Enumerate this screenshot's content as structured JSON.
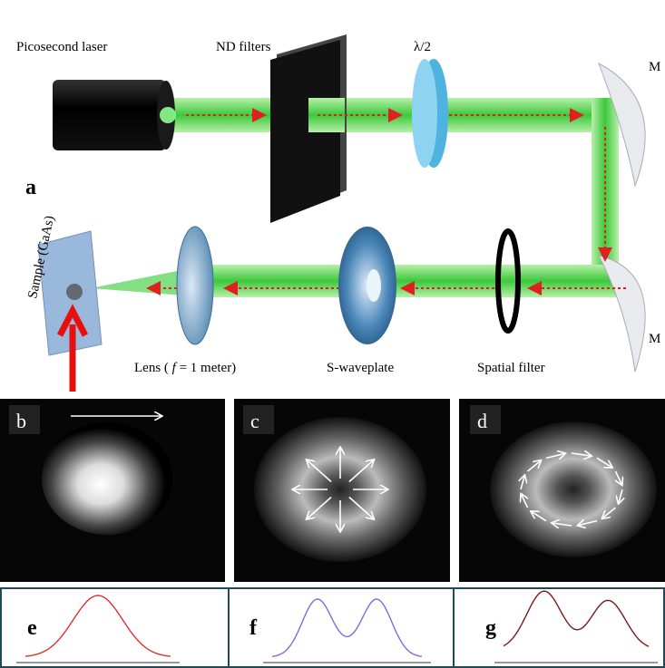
{
  "figure": {
    "setup": {
      "label": "a",
      "laser": "Picosecond laser",
      "nd_filters": "ND filters",
      "half_wave_plate": "λ/2",
      "mirror_top": "M",
      "mirror_bottom": "M",
      "sample": "Sample (GaAs)",
      "lens": {
        "prefix": "Lens ( ",
        "symbol": "f",
        "suffix": " = 1 meter)"
      },
      "s_waveplate": "S-waveplate",
      "spatial_filter": "Spatial filter"
    },
    "panels": [
      "b",
      "c",
      "d"
    ],
    "profiles": [
      "e",
      "f",
      "g"
    ]
  }
}
